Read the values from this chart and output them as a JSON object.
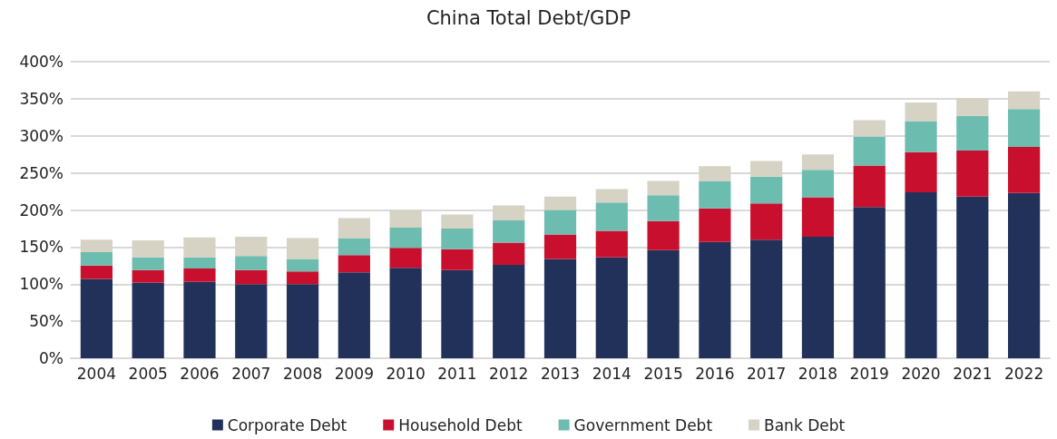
{
  "chart_data": {
    "type": "bar",
    "title": "China Total Debt/GDP",
    "stacked": true,
    "categories": [
      "2004",
      "2005",
      "2006",
      "2007",
      "2008",
      "2009",
      "2010",
      "2011",
      "2012",
      "2013",
      "2014",
      "2015",
      "2016",
      "2017",
      "2018",
      "2019",
      "2020",
      "2021",
      "2022"
    ],
    "series": [
      {
        "name": "Corporate Debt",
        "color": "#223159",
        "values": [
          107,
          102,
          103,
          100,
          100,
          116,
          122,
          119,
          126,
          134,
          136,
          146,
          157,
          160,
          164,
          204,
          224,
          218,
          223
        ]
      },
      {
        "name": "Household Debt",
        "color": "#c8102e",
        "values": [
          18,
          17,
          18,
          19,
          17,
          23,
          27,
          28,
          30,
          33,
          36,
          39,
          45,
          49,
          53,
          56,
          54,
          62,
          62
        ]
      },
      {
        "name": "Government Debt",
        "color": "#6dbcb0",
        "values": [
          18,
          17,
          15,
          19,
          17,
          23,
          27,
          28,
          30,
          33,
          38,
          35,
          37,
          36,
          37,
          39,
          42,
          47,
          51
        ]
      },
      {
        "name": "Bank Debt",
        "color": "#d6d2c4",
        "values": [
          17,
          23,
          27,
          26,
          28,
          27,
          24,
          19,
          20,
          18,
          18,
          19,
          20,
          21,
          21,
          22,
          25,
          24,
          24
        ]
      }
    ],
    "ylim": [
      0,
      400
    ],
    "yticks": [
      {
        "value": 0,
        "label": "0%"
      },
      {
        "value": 50,
        "label": "50%"
      },
      {
        "value": 100,
        "label": "100%"
      },
      {
        "value": 150,
        "label": "150%"
      },
      {
        "value": 200,
        "label": "200%"
      },
      {
        "value": 250,
        "label": "250%"
      },
      {
        "value": 300,
        "label": "300%"
      },
      {
        "value": 350,
        "label": "350%"
      },
      {
        "value": 400,
        "label": "400%"
      }
    ],
    "grid": "y",
    "legend": "bottom"
  }
}
